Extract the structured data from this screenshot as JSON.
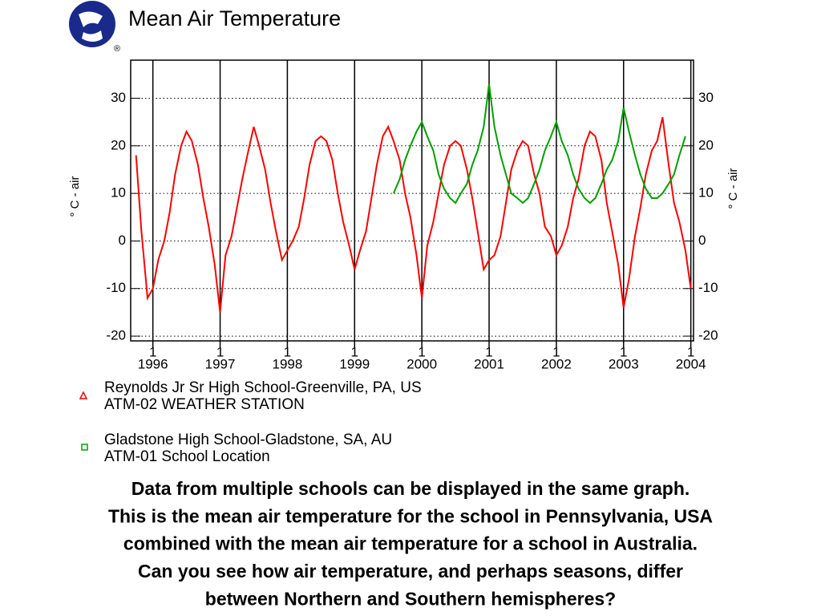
{
  "chart_data": {
    "type": "line",
    "title": "Mean Air Temperature",
    "ylabel": "° C - air",
    "xlim": [
      1995.67,
      2004.04
    ],
    "xticks": [
      1996,
      1997,
      1998,
      1999,
      2000,
      2001,
      2002,
      2003,
      2004
    ],
    "xtick_day": "1",
    "ylim": [
      -21,
      38
    ],
    "yticks": [
      -20,
      -10,
      0,
      10,
      20,
      30
    ],
    "grid": true,
    "series": [
      {
        "name": "Reynolds Jr Sr High School-Greenville, PA, US",
        "description": "ATM-02 WEATHER STATION",
        "color": "#ff0000",
        "marker": "triangle",
        "x": [
          1995.75,
          1995.83,
          1995.92,
          1996.0,
          1996.08,
          1996.17,
          1996.25,
          1996.33,
          1996.42,
          1996.5,
          1996.58,
          1996.67,
          1996.75,
          1996.83,
          1996.92,
          1997.0,
          1997.08,
          1997.17,
          1997.25,
          1997.33,
          1997.42,
          1997.5,
          1997.58,
          1997.67,
          1997.75,
          1997.83,
          1997.92,
          1998.0,
          1998.08,
          1998.17,
          1998.25,
          1998.33,
          1998.42,
          1998.5,
          1998.58,
          1998.67,
          1998.75,
          1998.83,
          1998.92,
          1999.0,
          1999.08,
          1999.17,
          1999.25,
          1999.33,
          1999.42,
          1999.5,
          1999.58,
          1999.67,
          1999.75,
          1999.83,
          1999.92,
          2000.0,
          2000.08,
          2000.17,
          2000.25,
          2000.33,
          2000.42,
          2000.5,
          2000.58,
          2000.67,
          2000.75,
          2000.83,
          2000.92,
          2001.0,
          2001.08,
          2001.17,
          2001.25,
          2001.33,
          2001.42,
          2001.5,
          2001.58,
          2001.67,
          2001.75,
          2001.83,
          2001.92,
          2002.0,
          2002.08,
          2002.17,
          2002.25,
          2002.33,
          2002.42,
          2002.5,
          2002.58,
          2002.67,
          2002.75,
          2002.83,
          2002.92,
          2003.0,
          2003.08,
          2003.17,
          2003.25,
          2003.33,
          2003.42,
          2003.5,
          2003.58,
          2003.67,
          2003.75,
          2003.83,
          2003.92,
          2004.0
        ],
        "values": [
          18,
          2,
          -12,
          -10,
          -4,
          0,
          6,
          14,
          20,
          23,
          21,
          16,
          9,
          3,
          -5,
          -15,
          -3,
          1,
          7,
          13,
          19,
          24,
          20,
          15,
          8,
          2,
          -4,
          -2,
          0,
          3,
          9,
          16,
          21,
          22,
          21,
          17,
          10,
          4,
          -1,
          -6,
          -2,
          2,
          9,
          16,
          22,
          24,
          21,
          17,
          10,
          5,
          -3,
          -12,
          -1,
          4,
          10,
          16,
          20,
          21,
          20,
          15,
          9,
          2,
          -6,
          -4,
          -3,
          1,
          8,
          15,
          19,
          21,
          20,
          14,
          10,
          3,
          1,
          -3,
          -1,
          3,
          9,
          13,
          20,
          23,
          22,
          17,
          8,
          2,
          -5,
          -14,
          -8,
          1,
          7,
          14,
          19,
          21,
          26,
          16,
          8,
          4,
          -2,
          -10
        ]
      },
      {
        "name": "Gladstone High School-Gladstone, SA, AU",
        "description": "ATM-01 School Location",
        "color": "#00a000",
        "marker": "square",
        "x": [
          1999.58,
          1999.67,
          1999.75,
          1999.83,
          1999.92,
          2000.0,
          2000.08,
          2000.17,
          2000.25,
          2000.33,
          2000.42,
          2000.5,
          2000.58,
          2000.67,
          2000.75,
          2000.83,
          2000.92,
          2001.0,
          2001.08,
          2001.17,
          2001.25,
          2001.33,
          2001.42,
          2001.5,
          2001.58,
          2001.67,
          2001.75,
          2001.83,
          2001.92,
          2002.0,
          2002.08,
          2002.17,
          2002.25,
          2002.33,
          2002.42,
          2002.5,
          2002.58,
          2002.67,
          2002.75,
          2002.83,
          2002.92,
          2003.0,
          2003.08,
          2003.17,
          2003.25,
          2003.33,
          2003.42,
          2003.5,
          2003.58,
          2003.67,
          2003.75,
          2003.83,
          2003.92
        ],
        "values": [
          10,
          13,
          17,
          20,
          23,
          25,
          22,
          19,
          14,
          11,
          9,
          8,
          10,
          12,
          16,
          19,
          24,
          33,
          24,
          18,
          14,
          10,
          9,
          8,
          9,
          12,
          15,
          19,
          22,
          25,
          21,
          18,
          14,
          11,
          9,
          8,
          9,
          12,
          15,
          17,
          21,
          28,
          23,
          18,
          14,
          11,
          9,
          9,
          10,
          12,
          14,
          18,
          22
        ]
      }
    ],
    "caption": [
      "Data from multiple schools can be displayed in the same graph.",
      "This is the mean air temperature for the school in Pennsylvania, USA",
      "combined with the mean air temperature for a school in Australia.",
      "Can you see how air temperature, and perhaps seasons, differ",
      "between Northern and Southern hemispheres?"
    ]
  }
}
